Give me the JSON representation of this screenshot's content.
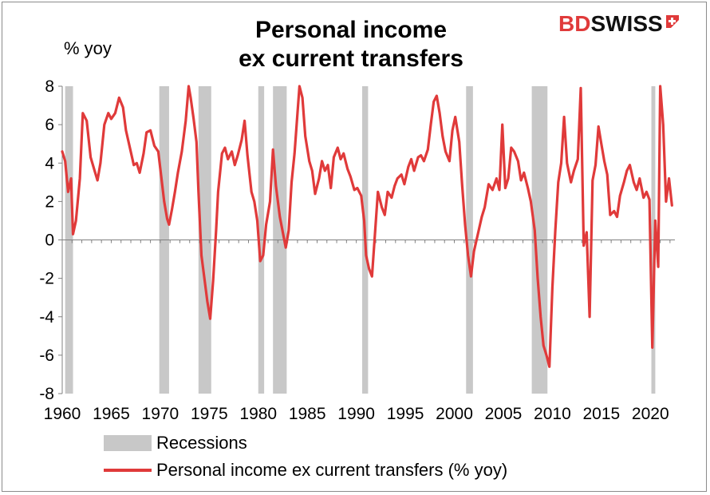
{
  "brand": {
    "part1": "BD",
    "part2": "SWISS",
    "accent": "#e03a3a"
  },
  "chart_data": {
    "type": "line",
    "title": [
      "Personal income",
      "ex current transfers"
    ],
    "ylabel": "% yoy",
    "xlim": [
      1960,
      2022.5
    ],
    "ylim": [
      -8,
      8
    ],
    "yticks": [
      8,
      6,
      4,
      2,
      0,
      -2,
      -4,
      -6,
      -8
    ],
    "xticks": [
      1960,
      1965,
      1970,
      1975,
      1980,
      1985,
      1990,
      1995,
      2000,
      2005,
      2010,
      2015,
      2020
    ],
    "legend": [
      "Recessions",
      "Personal income ex current transfers (% yoy)"
    ],
    "colors": {
      "series": "#e03a3a",
      "recession": "#c8c8c8"
    },
    "recessions": [
      [
        1960.3,
        1961.1
      ],
      [
        1969.9,
        1970.9
      ],
      [
        1973.9,
        1975.2
      ],
      [
        1980.0,
        1980.6
      ],
      [
        1981.5,
        1982.9
      ],
      [
        1990.6,
        1991.2
      ],
      [
        2001.2,
        2001.9
      ],
      [
        2007.9,
        2009.5
      ],
      [
        2020.1,
        2020.5
      ]
    ],
    "series": [
      {
        "name": "Personal income ex current transfers (% yoy)",
        "points": [
          [
            1960.0,
            4.6
          ],
          [
            1960.3,
            4.1
          ],
          [
            1960.6,
            2.5
          ],
          [
            1960.9,
            3.2
          ],
          [
            1961.1,
            0.3
          ],
          [
            1961.4,
            1.0
          ],
          [
            1961.8,
            3.2
          ],
          [
            1962.1,
            6.6
          ],
          [
            1962.5,
            6.2
          ],
          [
            1962.9,
            4.3
          ],
          [
            1963.3,
            3.6
          ],
          [
            1963.6,
            3.1
          ],
          [
            1963.9,
            4.0
          ],
          [
            1964.3,
            6.0
          ],
          [
            1964.7,
            6.6
          ],
          [
            1965.0,
            6.3
          ],
          [
            1965.4,
            6.6
          ],
          [
            1965.8,
            7.4
          ],
          [
            1966.2,
            6.9
          ],
          [
            1966.5,
            5.7
          ],
          [
            1966.9,
            4.8
          ],
          [
            1967.3,
            3.9
          ],
          [
            1967.6,
            4.0
          ],
          [
            1967.9,
            3.5
          ],
          [
            1968.3,
            4.5
          ],
          [
            1968.6,
            5.6
          ],
          [
            1969.0,
            5.7
          ],
          [
            1969.4,
            4.9
          ],
          [
            1969.8,
            4.6
          ],
          [
            1970.1,
            3.3
          ],
          [
            1970.4,
            2.0
          ],
          [
            1970.7,
            1.1
          ],
          [
            1970.9,
            0.8
          ],
          [
            1971.2,
            1.6
          ],
          [
            1971.5,
            2.5
          ],
          [
            1971.8,
            3.5
          ],
          [
            1972.2,
            4.6
          ],
          [
            1972.6,
            6.2
          ],
          [
            1972.9,
            8.0
          ],
          [
            1973.1,
            7.4
          ],
          [
            1973.4,
            6.3
          ],
          [
            1973.7,
            5.1
          ],
          [
            1973.9,
            2.5
          ],
          [
            1974.2,
            -0.8
          ],
          [
            1974.5,
            -2.0
          ],
          [
            1974.8,
            -3.2
          ],
          [
            1975.1,
            -4.1
          ],
          [
            1975.4,
            -2.1
          ],
          [
            1975.7,
            0.5
          ],
          [
            1975.9,
            2.5
          ],
          [
            1976.3,
            4.5
          ],
          [
            1976.6,
            4.8
          ],
          [
            1976.9,
            4.2
          ],
          [
            1977.3,
            4.6
          ],
          [
            1977.6,
            3.9
          ],
          [
            1977.9,
            4.4
          ],
          [
            1978.3,
            5.2
          ],
          [
            1978.6,
            6.2
          ],
          [
            1978.9,
            4.4
          ],
          [
            1979.3,
            2.5
          ],
          [
            1979.6,
            2.0
          ],
          [
            1979.9,
            1.0
          ],
          [
            1980.2,
            -1.1
          ],
          [
            1980.5,
            -0.8
          ],
          [
            1980.8,
            0.8
          ],
          [
            1981.2,
            2.0
          ],
          [
            1981.5,
            4.7
          ],
          [
            1981.8,
            2.8
          ],
          [
            1982.2,
            1.2
          ],
          [
            1982.5,
            0.4
          ],
          [
            1982.8,
            -0.4
          ],
          [
            1983.1,
            0.5
          ],
          [
            1983.4,
            3.0
          ],
          [
            1983.7,
            4.5
          ],
          [
            1984.0,
            6.6
          ],
          [
            1984.2,
            8.0
          ],
          [
            1984.5,
            7.4
          ],
          [
            1984.8,
            5.4
          ],
          [
            1985.2,
            4.1
          ],
          [
            1985.5,
            3.6
          ],
          [
            1985.8,
            2.4
          ],
          [
            1986.2,
            3.2
          ],
          [
            1986.5,
            4.1
          ],
          [
            1986.8,
            3.6
          ],
          [
            1987.1,
            3.9
          ],
          [
            1987.4,
            2.7
          ],
          [
            1987.7,
            4.3
          ],
          [
            1988.1,
            4.8
          ],
          [
            1988.4,
            4.2
          ],
          [
            1988.7,
            4.5
          ],
          [
            1989.1,
            3.7
          ],
          [
            1989.4,
            3.3
          ],
          [
            1989.8,
            2.6
          ],
          [
            1990.1,
            2.7
          ],
          [
            1990.5,
            2.3
          ],
          [
            1990.8,
            1.0
          ],
          [
            1991.0,
            -0.8
          ],
          [
            1991.3,
            -1.5
          ],
          [
            1991.6,
            -1.9
          ],
          [
            1991.9,
            0.3
          ],
          [
            1992.2,
            2.5
          ],
          [
            1992.6,
            1.7
          ],
          [
            1992.9,
            1.3
          ],
          [
            1993.2,
            2.5
          ],
          [
            1993.6,
            2.2
          ],
          [
            1993.9,
            2.8
          ],
          [
            1994.2,
            3.2
          ],
          [
            1994.6,
            3.4
          ],
          [
            1994.9,
            2.9
          ],
          [
            1995.3,
            3.8
          ],
          [
            1995.6,
            4.2
          ],
          [
            1995.9,
            3.6
          ],
          [
            1996.3,
            4.3
          ],
          [
            1996.6,
            4.4
          ],
          [
            1996.9,
            4.1
          ],
          [
            1997.3,
            4.7
          ],
          [
            1997.6,
            6.0
          ],
          [
            1997.9,
            7.2
          ],
          [
            1998.2,
            7.5
          ],
          [
            1998.5,
            6.6
          ],
          [
            1998.8,
            5.4
          ],
          [
            1999.1,
            4.6
          ],
          [
            1999.5,
            4.1
          ],
          [
            1999.8,
            5.7
          ],
          [
            2000.1,
            6.4
          ],
          [
            2000.5,
            5.1
          ],
          [
            2000.8,
            2.8
          ],
          [
            2001.1,
            0.8
          ],
          [
            2001.4,
            -0.8
          ],
          [
            2001.7,
            -1.9
          ],
          [
            2002.0,
            -0.6
          ],
          [
            2002.4,
            0.3
          ],
          [
            2002.8,
            1.2
          ],
          [
            2003.1,
            1.7
          ],
          [
            2003.5,
            2.9
          ],
          [
            2003.9,
            2.6
          ],
          [
            2004.3,
            3.2
          ],
          [
            2004.6,
            2.6
          ],
          [
            2004.9,
            6.0
          ],
          [
            2005.2,
            2.7
          ],
          [
            2005.5,
            3.2
          ],
          [
            2005.8,
            4.8
          ],
          [
            2006.1,
            4.6
          ],
          [
            2006.5,
            4.1
          ],
          [
            2006.8,
            3.1
          ],
          [
            2007.1,
            3.5
          ],
          [
            2007.5,
            2.7
          ],
          [
            2007.8,
            2.0
          ],
          [
            2008.2,
            0.5
          ],
          [
            2008.5,
            -2.0
          ],
          [
            2008.8,
            -4.0
          ],
          [
            2009.1,
            -5.5
          ],
          [
            2009.4,
            -6.0
          ],
          [
            2009.7,
            -6.6
          ],
          [
            2010.0,
            -2.5
          ],
          [
            2010.3,
            0.5
          ],
          [
            2010.6,
            3.0
          ],
          [
            2010.9,
            4.0
          ],
          [
            2011.2,
            6.4
          ],
          [
            2011.5,
            4.0
          ],
          [
            2011.9,
            3.0
          ],
          [
            2012.2,
            3.6
          ],
          [
            2012.6,
            4.2
          ],
          [
            2012.9,
            7.9
          ],
          [
            2013.2,
            -0.3
          ],
          [
            2013.5,
            0.4
          ],
          [
            2013.8,
            -4.0
          ],
          [
            2014.1,
            3.1
          ],
          [
            2014.4,
            3.9
          ],
          [
            2014.7,
            5.9
          ],
          [
            2015.0,
            5.0
          ],
          [
            2015.3,
            4.1
          ],
          [
            2015.6,
            3.4
          ],
          [
            2015.9,
            1.3
          ],
          [
            2016.3,
            1.5
          ],
          [
            2016.6,
            1.2
          ],
          [
            2016.9,
            2.3
          ],
          [
            2017.3,
            3.0
          ],
          [
            2017.6,
            3.6
          ],
          [
            2017.9,
            3.9
          ],
          [
            2018.3,
            3.0
          ],
          [
            2018.6,
            2.6
          ],
          [
            2018.9,
            3.2
          ],
          [
            2019.3,
            2.2
          ],
          [
            2019.6,
            2.5
          ],
          [
            2019.9,
            2.1
          ],
          [
            2020.2,
            -5.6
          ],
          [
            2020.5,
            1.0
          ],
          [
            2020.8,
            -1.4
          ],
          [
            2021.0,
            8.0
          ],
          [
            2021.3,
            6.0
          ],
          [
            2021.6,
            2.0
          ],
          [
            2021.9,
            3.2
          ],
          [
            2022.2,
            1.8
          ]
        ]
      }
    ]
  }
}
